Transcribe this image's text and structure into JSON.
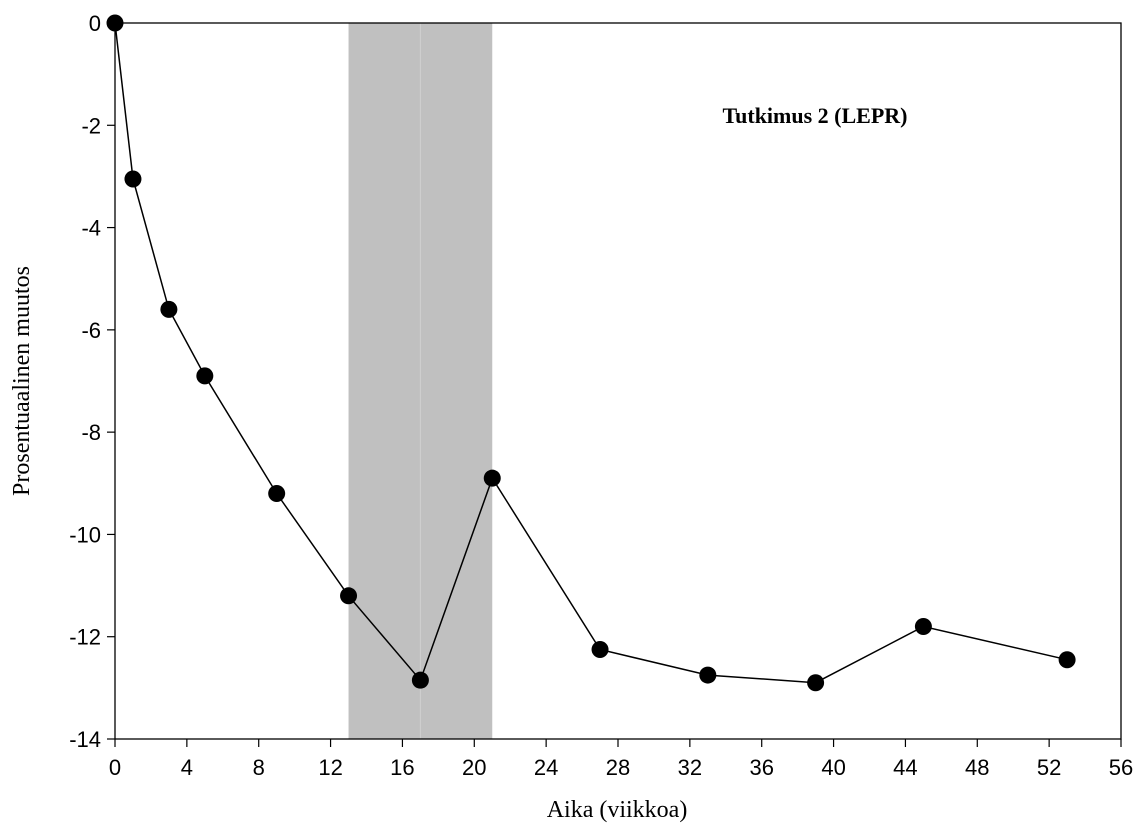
{
  "chart_data": {
    "type": "line",
    "xlabel": "Aika (viikkoa)",
    "ylabel": "Prosentuaalinen muutos",
    "annotation": "Tutkimus 2 (LEPR)",
    "xlim": [
      0,
      56
    ],
    "ylim": [
      -14,
      0
    ],
    "xticks": [
      0,
      4,
      8,
      12,
      16,
      20,
      24,
      28,
      32,
      36,
      40,
      44,
      48,
      52,
      56
    ],
    "yticks": [
      0,
      -2,
      -4,
      -6,
      -8,
      -10,
      -12,
      -14
    ],
    "shaded_regions": [
      {
        "x_start": 13,
        "x_end": 17
      },
      {
        "x_start": 17,
        "x_end": 21
      }
    ],
    "series": [
      {
        "x": [
          0,
          1,
          3,
          5,
          9,
          13,
          17,
          21,
          27,
          33,
          39,
          45,
          53
        ],
        "y": [
          0,
          -3.05,
          -5.6,
          -6.9,
          -9.2,
          -11.2,
          -12.85,
          -8.9,
          -12.25,
          -12.75,
          -12.9,
          -11.8,
          -12.45
        ]
      }
    ],
    "colors": {
      "line": "#000000",
      "marker": "#000000",
      "shade": "#c0c0c0"
    },
    "grid": false
  }
}
